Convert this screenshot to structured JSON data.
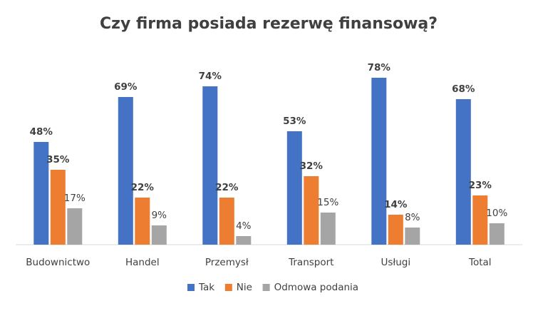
{
  "chart_data": {
    "type": "bar",
    "title": "Czy firma posiada rezerwę finansową?",
    "xlabel": "",
    "ylabel": "",
    "ylim": [
      0,
      100
    ],
    "grid": false,
    "legend_position": "bottom",
    "categories": [
      "Budownictwo",
      "Handel",
      "Przemysł",
      "Transport",
      "Usługi",
      "Total"
    ],
    "series": [
      {
        "name": "Tak",
        "color": "#4472C4",
        "values": [
          48,
          69,
          74,
          53,
          78,
          68
        ],
        "labels": [
          "48%",
          "69%",
          "74%",
          "53%",
          "78%",
          "68%"
        ],
        "label_bold": true
      },
      {
        "name": "Nie",
        "color": "#ED7D31",
        "values": [
          35,
          22,
          22,
          32,
          14,
          23
        ],
        "labels": [
          "35%",
          "22%",
          "22%",
          "32%",
          "14%",
          "23%"
        ],
        "label_bold": true
      },
      {
        "name": "Odmowa podania",
        "color": "#A5A5A5",
        "values": [
          17,
          9,
          4,
          15,
          8,
          10
        ],
        "labels": [
          "17%",
          "9%",
          "4%",
          "15%",
          "8%",
          "10%"
        ],
        "label_bold": false
      }
    ]
  }
}
